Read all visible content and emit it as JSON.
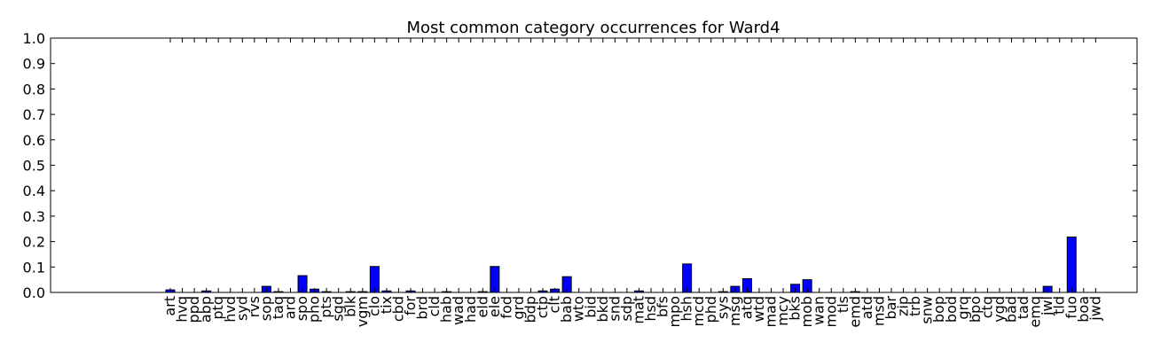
{
  "chart_data": {
    "type": "bar",
    "title": "Most common category occurrences for Ward4",
    "xlabel": "",
    "ylabel": "",
    "ylim": [
      0.0,
      1.0
    ],
    "yticks": [
      "0.0",
      "0.1",
      "0.2",
      "0.3",
      "0.4",
      "0.5",
      "0.6",
      "0.7",
      "0.8",
      "0.9",
      "1.0"
    ],
    "grid": false,
    "bar_color": "#0000ff",
    "categories": [
      "art",
      "hvq",
      "ppd",
      "abp",
      "ptq",
      "hvd",
      "syd",
      "rvs",
      "sop",
      "taq",
      "ard",
      "spo",
      "pho",
      "pts",
      "sgd",
      "blk",
      "vgm",
      "clo",
      "tix",
      "cbd",
      "for",
      "brd",
      "cld",
      "hab",
      "wad",
      "had",
      "eld",
      "ele",
      "fod",
      "grd",
      "bdp",
      "ctp",
      "clt",
      "bab",
      "wto",
      "bid",
      "bkd",
      "snd",
      "sdp",
      "mat",
      "hsd",
      "bfs",
      "mpo",
      "hsh",
      "mcd",
      "phd",
      "sys",
      "msg",
      "atq",
      "wtd",
      "mad",
      "mcy",
      "bks",
      "mob",
      "wan",
      "mod",
      "tls",
      "emd",
      "atd",
      "msd",
      "bar",
      "zip",
      "trb",
      "snw",
      "bop",
      "bod",
      "grq",
      "bpo",
      "ctq",
      "ygd",
      "bad",
      "tad",
      "emq",
      "jwl",
      "tld",
      "fuo",
      "boa",
      "jwd"
    ],
    "values": [
      0.01,
      0.0,
      0.0,
      0.006,
      0.0,
      0.0,
      0.0,
      0.0,
      0.024,
      0.003,
      0.0,
      0.066,
      0.013,
      0.003,
      0.0,
      0.003,
      0.003,
      0.102,
      0.006,
      0.0,
      0.006,
      0.0,
      0.0,
      0.003,
      0.0,
      0.0,
      0.003,
      0.102,
      0.0,
      0.0,
      0.0,
      0.006,
      0.013,
      0.062,
      0.0,
      0.0,
      0.0,
      0.0,
      0.0,
      0.006,
      0.0,
      0.0,
      0.0,
      0.112,
      0.0,
      0.0,
      0.003,
      0.024,
      0.054,
      0.0,
      0.0,
      0.0,
      0.032,
      0.05,
      0.0,
      0.0,
      0.0,
      0.003,
      0.0,
      0.0,
      0.0,
      0.0,
      0.0,
      0.0,
      0.0,
      0.0,
      0.0,
      0.0,
      0.0,
      0.0,
      0.0,
      0.0,
      0.0,
      0.024,
      0.0,
      0.218,
      0.0,
      0.0
    ]
  }
}
